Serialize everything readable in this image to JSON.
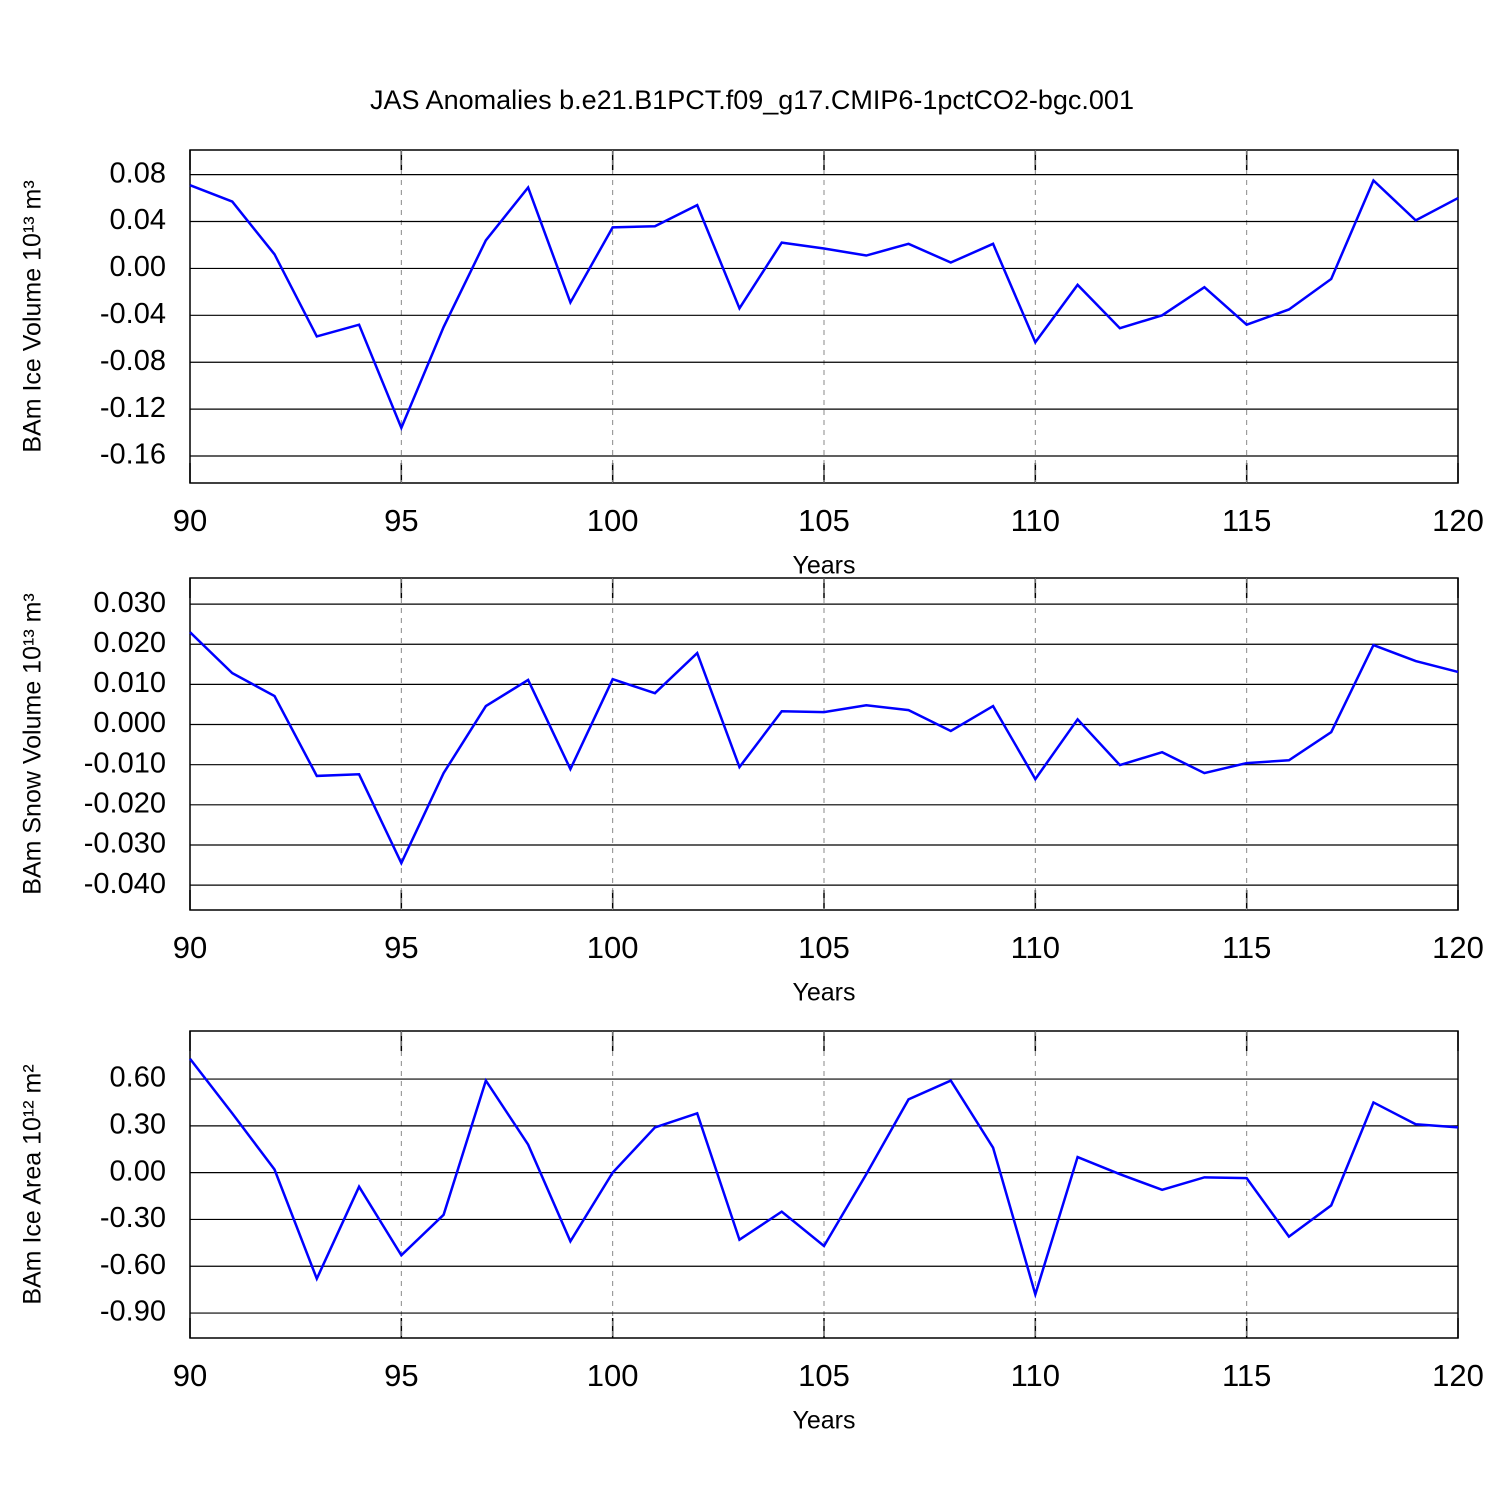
{
  "title": "JAS Anomalies b.e21.B1PCT.f09_g17.CMIP6-1pctCO2-bgc.001",
  "chart_data": [
    {
      "type": "line",
      "xlabel": "Years",
      "ylabel": "BAm Ice Volume 10¹³ m³",
      "x": [
        90,
        91,
        92,
        93,
        94,
        95,
        96,
        97,
        98,
        99,
        100,
        101,
        102,
        103,
        104,
        105,
        106,
        107,
        108,
        109,
        110,
        111,
        112,
        113,
        114,
        115,
        116,
        117,
        118,
        119,
        120
      ],
      "series": [
        {
          "color": "#0000ff",
          "values": [
            0.071,
            0.057,
            0.012,
            -0.058,
            -0.048,
            -0.136,
            -0.05,
            0.024,
            0.069,
            -0.029,
            0.035,
            0.036,
            0.054,
            -0.034,
            0.022,
            0.017,
            0.011,
            0.021,
            0.005,
            0.021,
            -0.063,
            -0.014,
            -0.051,
            -0.04,
            -0.016,
            -0.048,
            -0.035,
            -0.009,
            0.075,
            0.041,
            0.06
          ]
        }
      ],
      "xlim": [
        90,
        120
      ],
      "xticks": [
        90,
        95,
        100,
        105,
        110,
        115,
        120
      ],
      "ylim": [
        -0.183,
        0.101
      ],
      "yticks": [
        0.08,
        0.04,
        {
          "value": 0,
          "label": "0.00"
        },
        -0.04,
        -0.08,
        -0.12,
        -0.16
      ],
      "grid": "x"
    },
    {
      "type": "line",
      "xlabel": "Years",
      "ylabel": "BAm Snow Volume 10¹³ m³",
      "x": [
        90,
        91,
        92,
        93,
        94,
        95,
        96,
        97,
        98,
        99,
        100,
        101,
        102,
        103,
        104,
        105,
        106,
        107,
        108,
        109,
        110,
        111,
        112,
        113,
        114,
        115,
        116,
        117,
        118,
        119,
        120
      ],
      "series": [
        {
          "color": "#0000ff",
          "values": [
            0.023,
            0.0128,
            0.0071,
            -0.0128,
            -0.0124,
            -0.0345,
            -0.0121,
            0.0046,
            0.0111,
            -0.0111,
            0.0113,
            0.0078,
            0.0178,
            -0.0106,
            0.0033,
            0.0031,
            0.0048,
            0.0036,
            -0.0016,
            0.0046,
            -0.0136,
            0.0013,
            -0.0101,
            -0.0069,
            -0.0121,
            -0.0096,
            -0.0089,
            -0.0019,
            0.0198,
            0.0158,
            0.0131
          ]
        }
      ],
      "xlim": [
        90,
        120
      ],
      "xticks": [
        90,
        95,
        100,
        105,
        110,
        115,
        120
      ],
      "ylim": [
        -0.0462,
        0.0365
      ],
      "yticks": [
        {
          "value": 0.03,
          "label": "0.030"
        },
        {
          "value": 0.02,
          "label": "0.020"
        },
        {
          "value": 0.01,
          "label": "0.010"
        },
        {
          "value": 0,
          "label": "0.000"
        },
        {
          "value": -0.01,
          "label": "-0.010"
        },
        {
          "value": -0.02,
          "label": "-0.020"
        },
        {
          "value": -0.03,
          "label": "-0.030"
        },
        {
          "value": -0.04,
          "label": "-0.040"
        }
      ],
      "grid": "x"
    },
    {
      "type": "line",
      "xlabel": "Years",
      "ylabel": "BAm Ice Area 10¹² m²",
      "x": [
        90,
        91,
        92,
        93,
        94,
        95,
        96,
        97,
        98,
        99,
        100,
        101,
        102,
        103,
        104,
        105,
        106,
        107,
        108,
        109,
        110,
        111,
        112,
        113,
        114,
        115,
        116,
        117,
        118,
        119,
        120
      ],
      "series": [
        {
          "color": "#0000ff",
          "values": [
            0.73,
            0.38,
            0.02,
            -0.68,
            -0.09,
            -0.53,
            -0.27,
            0.59,
            0.18,
            -0.44,
            0.0,
            0.29,
            0.38,
            -0.43,
            -0.25,
            -0.47,
            -0.01,
            0.47,
            0.59,
            0.16,
            -0.78,
            0.1,
            -0.01,
            -0.11,
            -0.03,
            -0.035,
            -0.41,
            -0.21,
            0.45,
            0.31,
            0.29
          ]
        }
      ],
      "xlim": [
        90,
        120
      ],
      "xticks": [
        90,
        95,
        100,
        105,
        110,
        115,
        120
      ],
      "ylim": [
        -1.06,
        0.908
      ],
      "yticks": [
        {
          "value": 0.6,
          "label": "0.60"
        },
        {
          "value": 0.3,
          "label": "0.30"
        },
        {
          "value": 0,
          "label": "0.00"
        },
        {
          "value": -0.3,
          "label": "-0.30"
        },
        {
          "value": -0.6,
          "label": "-0.60"
        },
        {
          "value": -0.9,
          "label": "-0.90"
        }
      ],
      "grid": "x"
    }
  ]
}
